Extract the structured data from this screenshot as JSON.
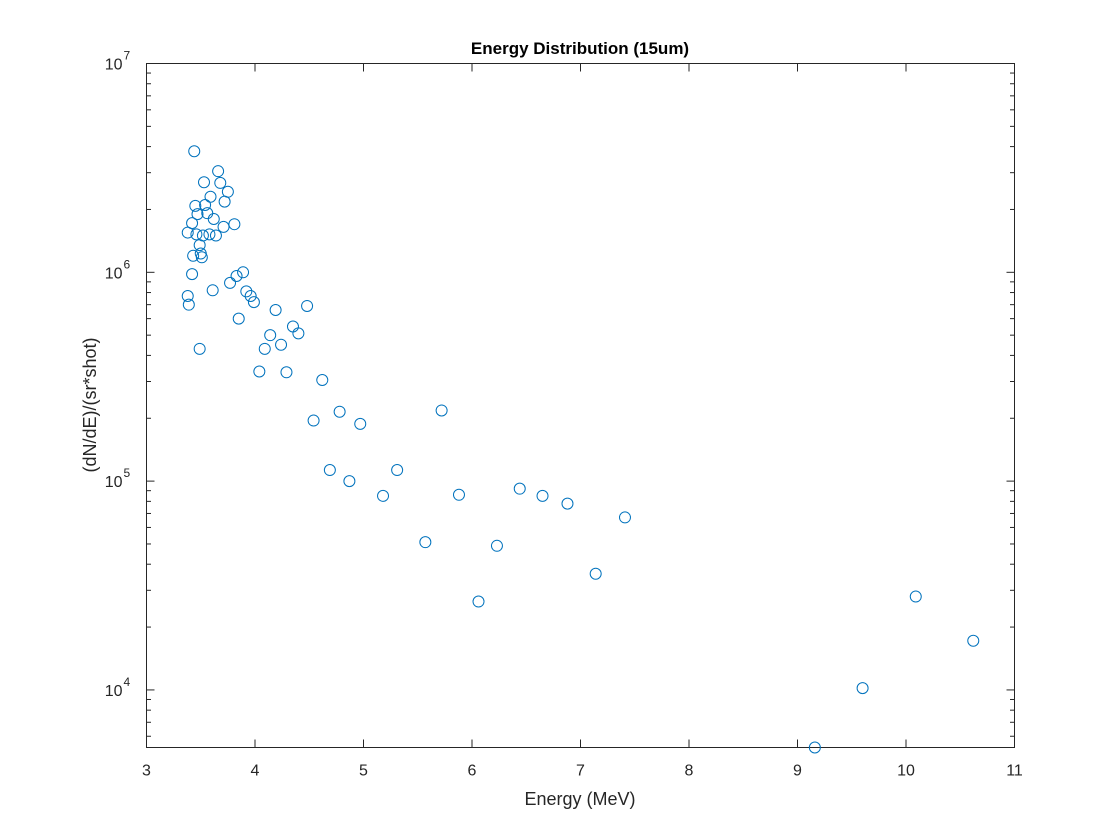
{
  "chart_data": {
    "type": "scatter",
    "title": "Energy Distribution (15um)",
    "xlabel": "Energy (MeV)",
    "ylabel": "(dN/dE)/(sr*shot)",
    "xlim": [
      3,
      11
    ],
    "ylim": [
      5300,
      10000000
    ],
    "yscale": "log",
    "grid": false,
    "x_ticks": [
      3,
      4,
      5,
      6,
      7,
      8,
      9,
      10,
      11
    ],
    "x_tick_labels": [
      "3",
      "4",
      "5",
      "6",
      "7",
      "8",
      "9",
      "10",
      "11"
    ],
    "y_ticks": [
      10000,
      100000,
      1000000,
      10000000
    ],
    "y_tick_base": [
      "10",
      "10",
      "10",
      "10"
    ],
    "y_tick_exp": [
      "4",
      "5",
      "6",
      "7"
    ],
    "marker": "circle-open",
    "color": "#0072BD",
    "series": [
      {
        "x": [
          3.44,
          3.53,
          3.66,
          3.68,
          3.75,
          3.59,
          3.72,
          3.45,
          3.54,
          3.47,
          3.56,
          3.62,
          3.42,
          3.81,
          3.38,
          3.46,
          3.52,
          3.58,
          3.64,
          3.71,
          3.49,
          3.43,
          3.5,
          3.51,
          3.42,
          3.83,
          3.89,
          3.77,
          3.61,
          3.38,
          3.39,
          3.92,
          3.96,
          3.99,
          3.85,
          4.14,
          4.09,
          4.24,
          4.04,
          4.29,
          3.49,
          4.19,
          4.35,
          4.4,
          4.48,
          4.62,
          4.54,
          4.78,
          4.97,
          5.72,
          4.69,
          4.87,
          5.18,
          5.31,
          5.57,
          5.88,
          6.06,
          6.23,
          6.44,
          6.65,
          6.88,
          7.14,
          7.41,
          9.16,
          9.6,
          10.09,
          10.62
        ],
        "y": [
          3800000,
          2700000,
          3050000,
          2680000,
          2430000,
          2300000,
          2180000,
          2080000,
          2100000,
          1900000,
          1920000,
          1800000,
          1720000,
          1700000,
          1550000,
          1520000,
          1500000,
          1520000,
          1500000,
          1650000,
          1350000,
          1200000,
          1230000,
          1180000,
          980000,
          960000,
          1000000,
          890000,
          820000,
          770000,
          700000,
          810000,
          770000,
          720000,
          600000,
          500000,
          430000,
          450000,
          335000,
          332000,
          430000,
          660000,
          550000,
          510000,
          690000,
          305000,
          195000,
          215000,
          188000,
          218000,
          113000,
          100000,
          85000,
          113000,
          51000,
          86000,
          26500,
          49000,
          92000,
          85000,
          78000,
          36000,
          67000,
          5300,
          10200,
          28000,
          17200
        ]
      }
    ]
  }
}
